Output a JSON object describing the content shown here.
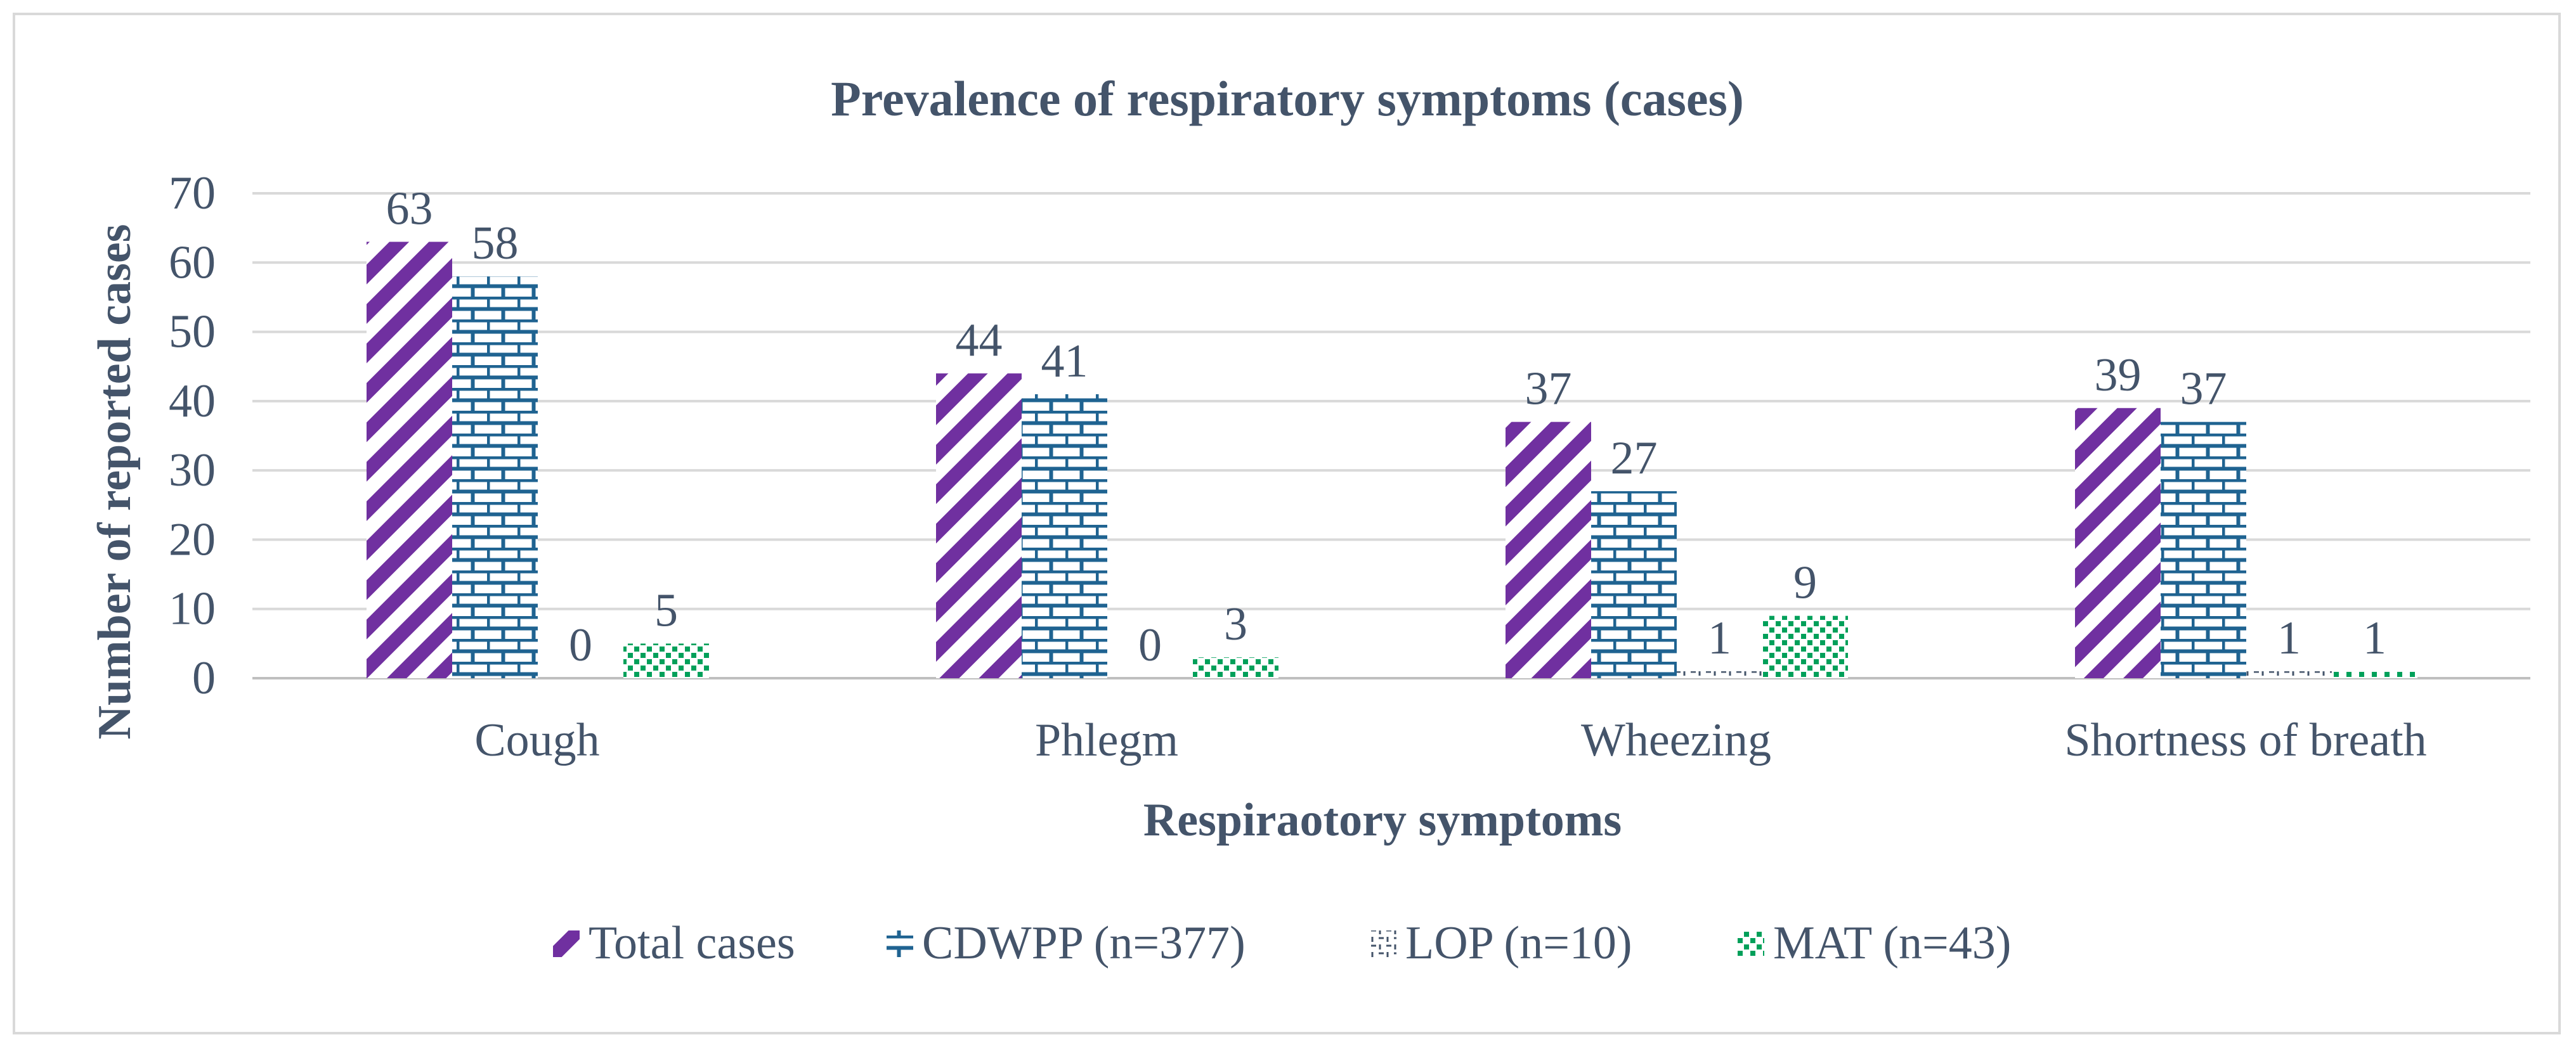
{
  "chart_data": {
    "type": "bar",
    "title": "Prevalence of respiratory symptoms (cases)",
    "xlabel": "Respiraotory symptoms",
    "ylabel": "Number of reported cases",
    "categories": [
      "Cough",
      "Phlegm",
      "Wheezing",
      "Shortness of breath"
    ],
    "ylim": [
      0,
      70
    ],
    "yticks": [
      0,
      10,
      20,
      30,
      40,
      50,
      60,
      70
    ],
    "grid": true,
    "legend_position": "bottom",
    "series": [
      {
        "name": "Total cases",
        "values": [
          63,
          44,
          37,
          39
        ],
        "pattern": "diagonal-stripes",
        "color": "#7030a0"
      },
      {
        "name": "CDWPP (n=377)",
        "values": [
          58,
          41,
          27,
          37
        ],
        "pattern": "brick",
        "color": "#1f6391"
      },
      {
        "name": "LOP (n=10)",
        "values": [
          0,
          0,
          1,
          1
        ],
        "pattern": "dashed-weave",
        "color": "#44546a"
      },
      {
        "name": "MAT (n=43)",
        "values": [
          5,
          3,
          9,
          1
        ],
        "pattern": "dotted-grid",
        "color": "#00a05a"
      }
    ]
  }
}
